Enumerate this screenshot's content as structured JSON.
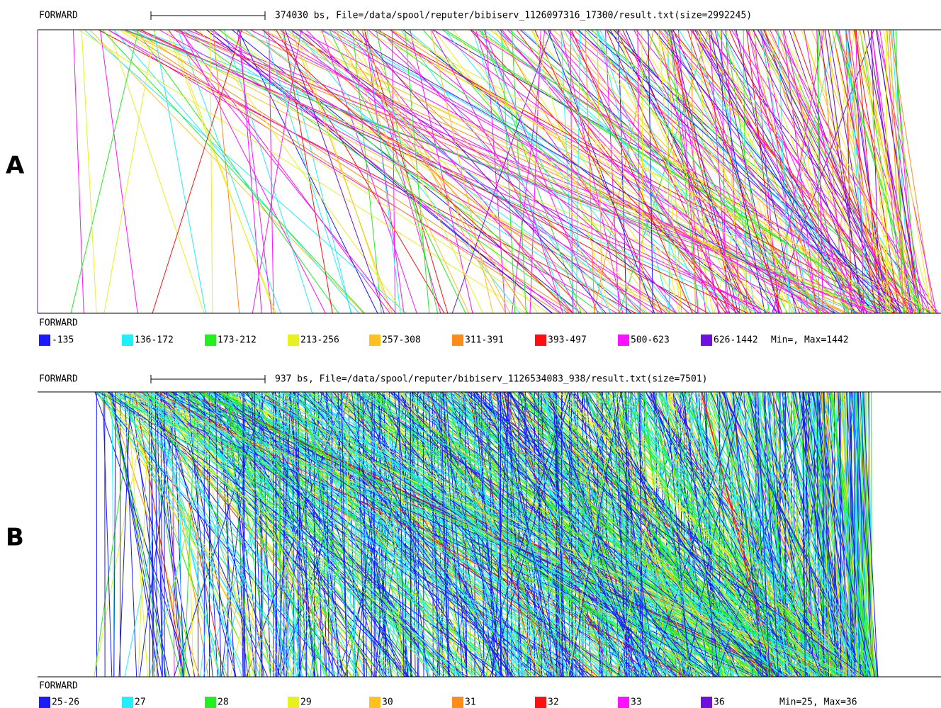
{
  "panels": [
    {
      "label": "A",
      "top_label": "FORWARD",
      "scale_text": "374030 bs, File=/data/spool/reputer/bibiserv_1126097316_17300/result.txt(size=2992245)",
      "bottom_label": "FORWARD",
      "legend": [
        {
          "label": "-135",
          "color": "#1a1aff"
        },
        {
          "label": "136-172",
          "color": "#22eeff"
        },
        {
          "label": "173-212",
          "color": "#22ee22"
        },
        {
          "label": "213-256",
          "color": "#e8f020"
        },
        {
          "label": "257-308",
          "color": "#ffc020"
        },
        {
          "label": "311-391",
          "color": "#ff8c1a"
        },
        {
          "label": "393-497",
          "color": "#ff1010"
        },
        {
          "label": "500-623",
          "color": "#ff10ff"
        },
        {
          "label": "626-1442",
          "color": "#7010e0"
        }
      ],
      "summary": "Min=, Max=1442"
    },
    {
      "label": "B",
      "top_label": "FORWARD",
      "scale_text": "937 bs, File=/data/spool/reputer/bibiserv_1126534083_938/result.txt(size=7501)",
      "bottom_label": "FORWARD",
      "legend": [
        {
          "label": "25-26",
          "color": "#1a1aff"
        },
        {
          "label": "27",
          "color": "#22eeff"
        },
        {
          "label": "28",
          "color": "#22ee22"
        },
        {
          "label": "29",
          "color": "#e8f020"
        },
        {
          "label": "30",
          "color": "#ffc020"
        },
        {
          "label": "31",
          "color": "#ff8c1a"
        },
        {
          "label": "32",
          "color": "#ff1010"
        },
        {
          "label": "33",
          "color": "#ff10ff"
        },
        {
          "label": "36",
          "color": "#7010e0"
        }
      ],
      "summary": "Min=25, Max=36"
    }
  ]
}
